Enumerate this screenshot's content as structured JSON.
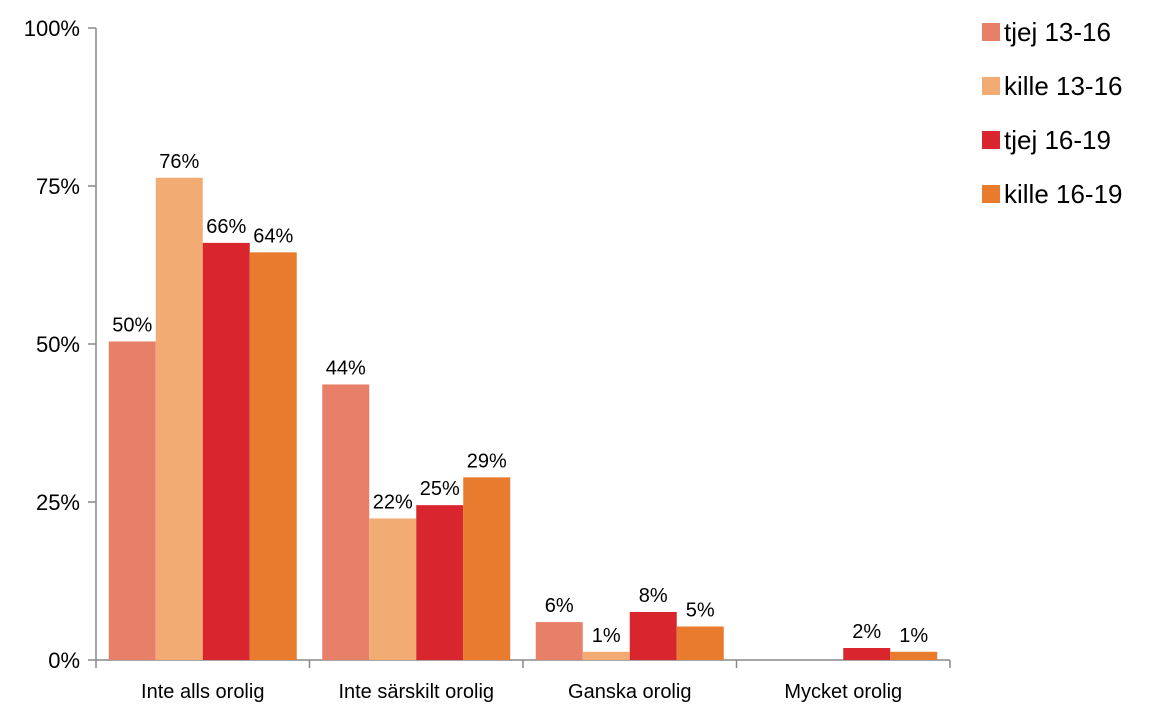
{
  "chart_data": {
    "type": "bar",
    "categories": [
      "Inte alls orolig",
      "Inte särskilt orolig",
      "Ganska orolig",
      "Mycket orolig"
    ],
    "series": [
      {
        "name": "tjej 13-16",
        "color": "#E88069",
        "values": [
          50.4,
          43.6,
          6.0,
          0
        ],
        "labels": [
          "50%",
          "44%",
          "6%",
          ""
        ]
      },
      {
        "name": "kille 13-16",
        "color": "#F2AB73",
        "values": [
          76.3,
          22.4,
          1.3,
          0
        ],
        "labels": [
          "76%",
          "22%",
          "1%",
          ""
        ]
      },
      {
        "name": "tjej 16-19",
        "color": "#D9262E",
        "values": [
          66.0,
          24.5,
          7.6,
          1.9
        ],
        "labels": [
          "66%",
          "25%",
          "8%",
          "2%"
        ]
      },
      {
        "name": "kille 16-19",
        "color": "#E87B2E",
        "values": [
          64.5,
          28.9,
          5.3,
          1.3
        ],
        "labels": [
          "64%",
          "29%",
          "5%",
          "1%"
        ]
      }
    ],
    "yticks": [
      "0%",
      "25%",
      "50%",
      "75%",
      "100%"
    ],
    "ylim": [
      0,
      100
    ],
    "legend_position": "top-right",
    "grid": false
  }
}
